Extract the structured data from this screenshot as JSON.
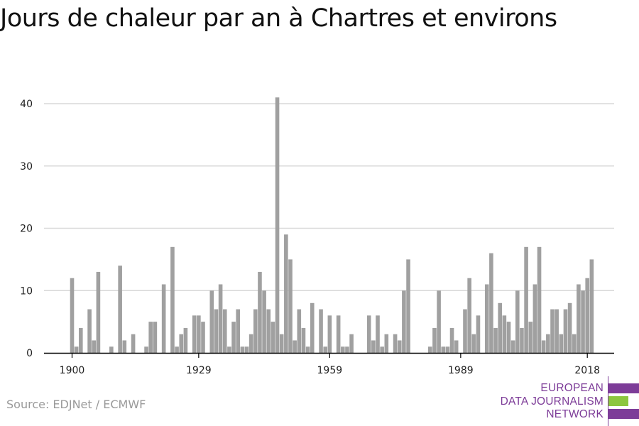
{
  "title": "Jours de chaleur par an à Chartres et environs",
  "source": "Source: EDJNet / ECMWF",
  "logo": {
    "line1": "EUROPEAN",
    "line2": "DATA JOURNALISM",
    "line3": "NETWORK",
    "colors": {
      "purple": "#7d3c98",
      "green": "#8cc63f"
    }
  },
  "colors": {
    "bar": "#a0a0a0",
    "grid": "#d9d9d9",
    "axis": "#000000"
  },
  "chart_data": {
    "type": "bar",
    "title": "Jours de chaleur par an à Chartres et environs",
    "xlabel": "",
    "ylabel": "",
    "ylim": [
      0,
      42
    ],
    "yticks": [
      0,
      10,
      20,
      30,
      40
    ],
    "xticks": [
      1900,
      1929,
      1959,
      1989,
      2018
    ],
    "grid": true,
    "x": [
      1900,
      1901,
      1902,
      1903,
      1904,
      1905,
      1906,
      1907,
      1908,
      1909,
      1910,
      1911,
      1912,
      1913,
      1914,
      1915,
      1916,
      1917,
      1918,
      1919,
      1920,
      1921,
      1922,
      1923,
      1924,
      1925,
      1926,
      1927,
      1928,
      1929,
      1930,
      1931,
      1932,
      1933,
      1934,
      1935,
      1936,
      1937,
      1938,
      1939,
      1940,
      1941,
      1942,
      1943,
      1944,
      1945,
      1946,
      1947,
      1948,
      1949,
      1950,
      1951,
      1952,
      1953,
      1954,
      1955,
      1956,
      1957,
      1958,
      1959,
      1960,
      1961,
      1962,
      1963,
      1964,
      1965,
      1966,
      1967,
      1968,
      1969,
      1970,
      1971,
      1972,
      1973,
      1974,
      1975,
      1976,
      1977,
      1978,
      1979,
      1980,
      1981,
      1982,
      1983,
      1984,
      1985,
      1986,
      1987,
      1988,
      1989,
      1990,
      1991,
      1992,
      1993,
      1994,
      1995,
      1996,
      1997,
      1998,
      1999,
      2000,
      2001,
      2002,
      2003,
      2004,
      2005,
      2006,
      2007,
      2008,
      2009,
      2010,
      2011,
      2012,
      2013,
      2014,
      2015,
      2016,
      2017,
      2018,
      2019
    ],
    "values": [
      12,
      1,
      4,
      0,
      7,
      2,
      13,
      0,
      0,
      1,
      0,
      14,
      2,
      0,
      3,
      0,
      0,
      1,
      5,
      5,
      0,
      11,
      0,
      17,
      1,
      3,
      4,
      0,
      6,
      6,
      5,
      0,
      10,
      7,
      11,
      7,
      1,
      5,
      7,
      1,
      1,
      3,
      7,
      13,
      10,
      7,
      5,
      41,
      3,
      19,
      15,
      2,
      7,
      4,
      1,
      8,
      0,
      7,
      1,
      6,
      0,
      6,
      1,
      1,
      3,
      0,
      0,
      0,
      6,
      2,
      6,
      1,
      3,
      0,
      3,
      2,
      10,
      15,
      0,
      0,
      0,
      0,
      1,
      4,
      10,
      1,
      1,
      4,
      2,
      0,
      7,
      12,
      3,
      6,
      0,
      11,
      16,
      4,
      8,
      6,
      5,
      2,
      10,
      4,
      17,
      5,
      11,
      17,
      2,
      3,
      7,
      7,
      3,
      7,
      8,
      3,
      11,
      10,
      12,
      15
    ]
  }
}
